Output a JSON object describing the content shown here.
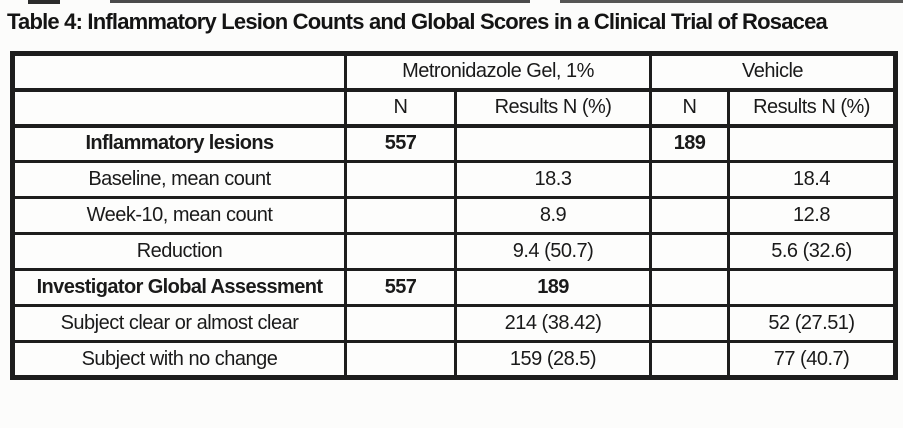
{
  "title": "Table 4: Inflammatory Lesion Counts and Global Scores in a Clinical Trial of Rosacea",
  "table": {
    "groups": [
      "",
      "Metronidazole Gel, 1%",
      "Vehicle"
    ],
    "columns": [
      "N",
      "Results N (%)",
      "N",
      "Results N (%)"
    ],
    "rows": [
      {
        "label": "Inflammatory lesions",
        "cells": [
          "557",
          "",
          "189",
          ""
        ]
      },
      {
        "label": "Baseline, mean count",
        "cells": [
          "",
          "18.3",
          "",
          "18.4"
        ]
      },
      {
        "label": "Week-10, mean count",
        "cells": [
          "",
          "8.9",
          "",
          "12.8"
        ]
      },
      {
        "label": "Reduction",
        "cells": [
          "",
          "9.4 (50.7)",
          "",
          "5.6 (32.6)"
        ]
      },
      {
        "label": "Investigator Global Assessment",
        "cells": [
          "557",
          "189",
          "",
          ""
        ]
      },
      {
        "label": "Subject clear or almost clear",
        "cells": [
          "",
          "214 (38.42)",
          "",
          "52 (27.51)"
        ]
      },
      {
        "label": "Subject with no change",
        "cells": [
          "",
          "159 (28.5)",
          "",
          "77 (40.7)"
        ]
      }
    ]
  },
  "colors": {
    "border": "#1d1d1d",
    "background": "#fcfcfb",
    "text": "#1a1a1a"
  }
}
